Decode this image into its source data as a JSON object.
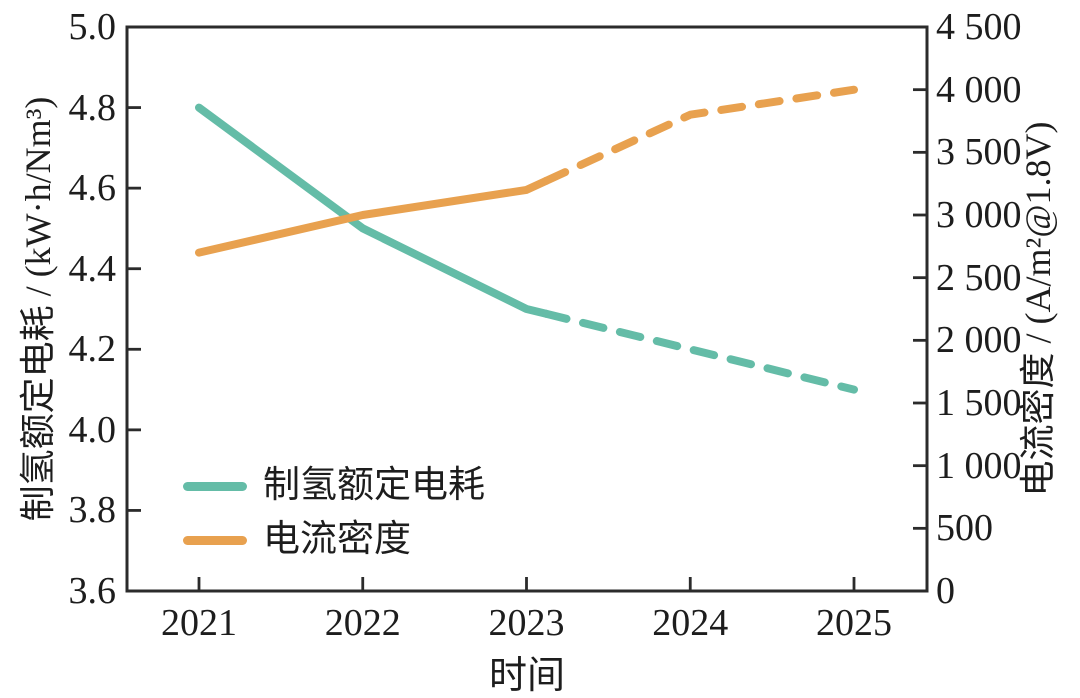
{
  "figure": {
    "background": "#ffffff",
    "text_color": "#1d1d1d",
    "axis_color": "#2b2b2b"
  },
  "chart_data": {
    "type": "line",
    "title": "",
    "xlabel": "时间",
    "x": [
      2021,
      2022,
      2023,
      2024,
      2025
    ],
    "x_tick_labels": [
      "2021",
      "2022",
      "2023",
      "2024",
      "2025"
    ],
    "left_axis": {
      "label": "制氢额定电耗 / (kW·h/Nm³)",
      "min": 3.6,
      "max": 5.0,
      "step": 0.2,
      "tick_labels": [
        "3.6",
        "3.8",
        "4.0",
        "4.2",
        "4.4",
        "4.6",
        "4.8",
        "5.0"
      ]
    },
    "right_axis": {
      "label": "电流密度 / (A/m²@1.8V)",
      "min": 0,
      "max": 4500,
      "step": 500,
      "tick_labels": [
        "0",
        "500",
        "1 000",
        "1 500",
        "2 000",
        "2 500",
        "3 000",
        "3 500",
        "4 000",
        "4 500"
      ]
    },
    "series": [
      {
        "name": "制氢额定电耗",
        "axis": "left",
        "color": "#64bca7",
        "values": [
          4.8,
          4.5,
          4.3,
          4.2,
          4.1
        ],
        "line_style": "solid-then-dashed",
        "dash_start_x": 2023
      },
      {
        "name": "电流密度",
        "axis": "right",
        "color": "#e8a14f",
        "values": [
          2700,
          3000,
          3200,
          3800,
          4000
        ],
        "line_style": "solid-then-dashed",
        "dash_start_x": 2023
      }
    ],
    "legend": {
      "position": "lower-left",
      "items": [
        {
          "label": "制氢额定电耗",
          "color": "#64bca7"
        },
        {
          "label": "电流密度",
          "color": "#e8a14f"
        }
      ]
    },
    "grid": false
  }
}
